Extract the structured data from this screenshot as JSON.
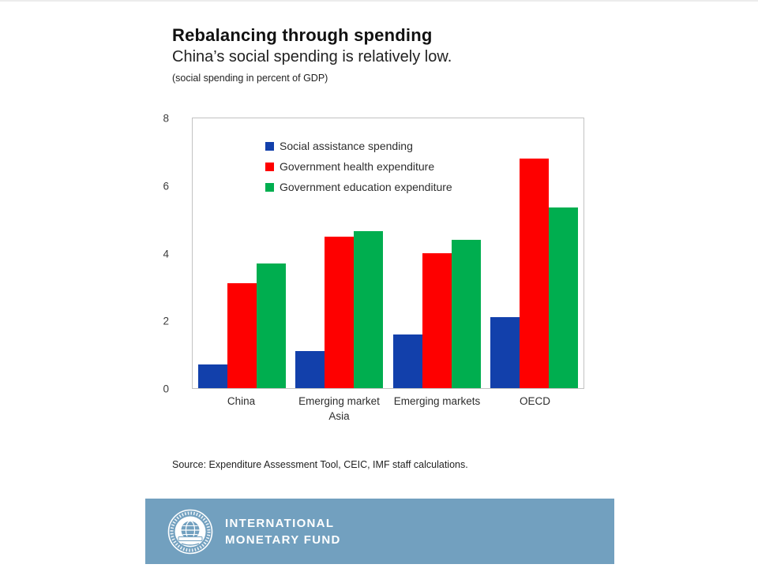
{
  "page": {
    "title": "Rebalancing through spending",
    "subtitle": "China’s social spending is relatively low.",
    "unit_note": "(social spending in percent of GDP)",
    "source": "Source: Expenditure Assessment Tool, CEIC, IMF staff calculations."
  },
  "footer": {
    "org_line1": "INTERNATIONAL",
    "org_line2": "MONETARY FUND",
    "band_color": "#72A0BF",
    "logo": "imf-seal-logo"
  },
  "chart_data": {
    "type": "bar",
    "title": "Rebalancing through spending",
    "subtitle": "China’s social spending is relatively low.",
    "unit_note": "(social spending in percent of GDP)",
    "categories": [
      "China",
      "Emerging market Asia",
      "Emerging markets",
      "OECD"
    ],
    "series": [
      {
        "name": "Social assistance spending",
        "color": "#1240AB",
        "values": [
          0.7,
          1.1,
          1.6,
          2.1
        ]
      },
      {
        "name": "Government health expenditure",
        "color": "#FE0000",
        "values": [
          3.1,
          4.5,
          4.0,
          6.8
        ]
      },
      {
        "name": "Government education expenditure",
        "color": "#00AE4F",
        "values": [
          3.7,
          4.65,
          4.4,
          5.35
        ]
      }
    ],
    "xlabel": "",
    "ylabel": "",
    "ylim": [
      0,
      8
    ],
    "yticks": [
      0,
      2,
      4,
      6,
      8
    ],
    "grid": false,
    "legend_position": "inside-top-left"
  }
}
